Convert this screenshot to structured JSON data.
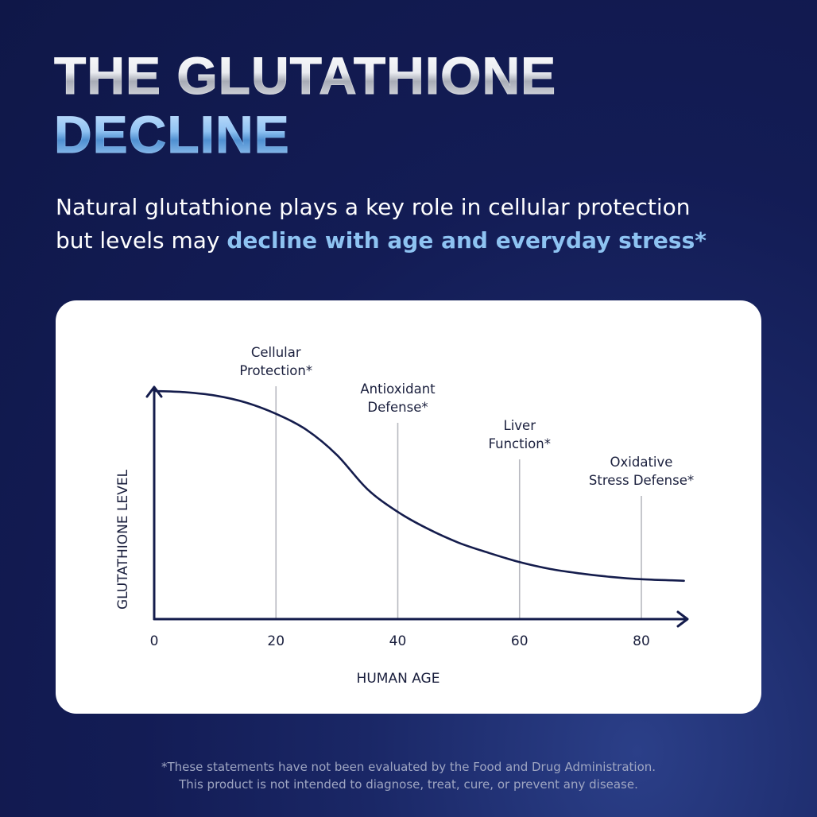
{
  "title": {
    "line1": "THE GLUTATHIONE",
    "line2": "DECLINE"
  },
  "subtitle": {
    "line1": "Natural glutathione plays a key role in cellular protection",
    "line2_plain": "but levels may ",
    "line2_highlight": "decline with age and everyday stress*"
  },
  "chart_data": {
    "type": "line",
    "xlabel": "HUMAN AGE",
    "ylabel": "GLUTATHIONE LEVEL",
    "xlim": [
      0,
      88
    ],
    "ylim": [
      0,
      100
    ],
    "xticks": [
      "0",
      "20",
      "40",
      "60",
      "80"
    ],
    "series": [
      {
        "x": [
          0,
          5,
          10,
          15,
          20,
          25,
          30,
          35,
          40,
          45,
          50,
          55,
          60,
          65,
          70,
          75,
          80,
          85,
          87
        ],
        "values": [
          100,
          99.5,
          98,
          95,
          90,
          83,
          72,
          57,
          47,
          39.5,
          33.5,
          29,
          25,
          22,
          20,
          18.5,
          17.5,
          17,
          16.8
        ]
      }
    ],
    "annotations": [
      {
        "x": 20,
        "lines": [
          "Cellular",
          "Protection*"
        ]
      },
      {
        "x": 40,
        "lines": [
          "Antioxidant",
          "Defense*"
        ]
      },
      {
        "x": 60,
        "lines": [
          "Liver",
          "Function*"
        ]
      },
      {
        "x": 80,
        "lines": [
          "Oxidative",
          "Stress Defense*"
        ]
      }
    ],
    "colors": {
      "curve": "#141c4c",
      "axis": "#141c4c",
      "marker_line": "#b7b9c0",
      "text": "#1a1f3d"
    }
  },
  "footer": {
    "line1": "*These statements have not been evaluated by the Food and Drug Administration.",
    "line2": "This product is not intended to diagnose, treat, cure, or prevent any disease."
  }
}
